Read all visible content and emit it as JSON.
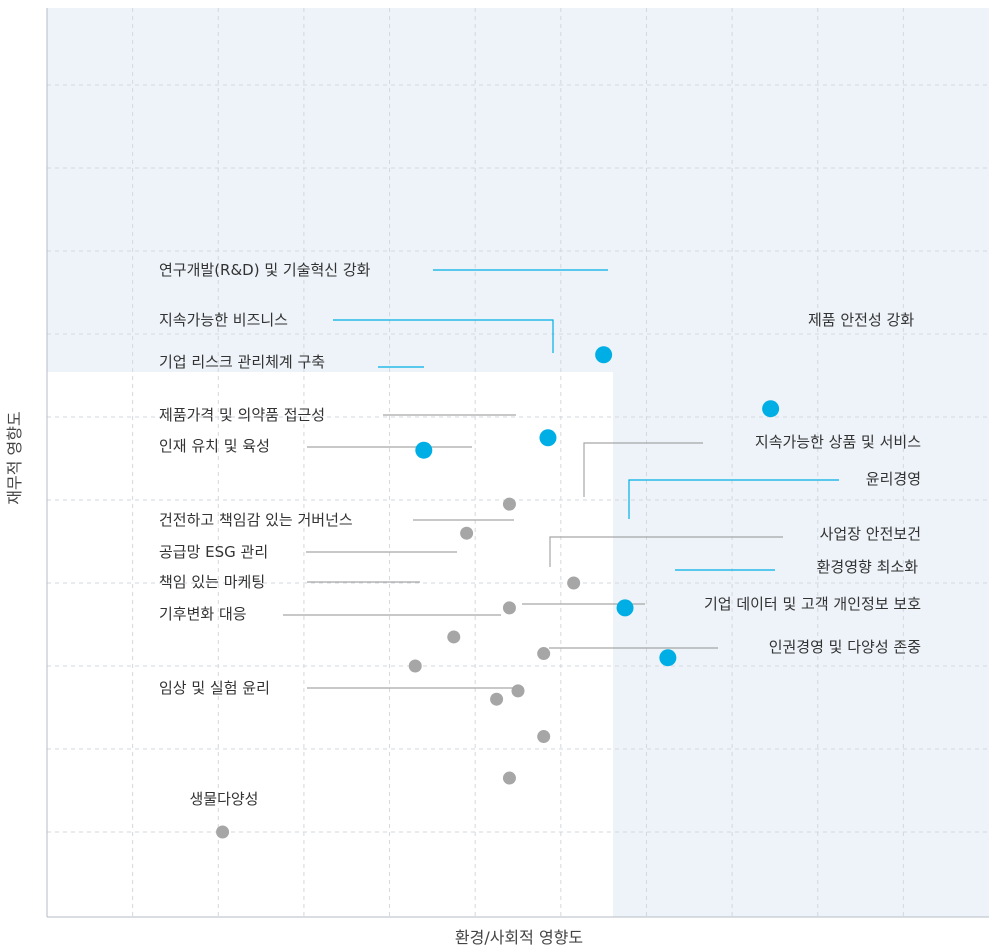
{
  "chart_data": {
    "type": "scatter",
    "xlabel": "환경/사회적 영향도",
    "ylabel": "재무적 영향도",
    "xlim": [
      0,
      11
    ],
    "ylim": [
      0,
      9
    ],
    "grid": true,
    "colors": {
      "highlight": "#00aee6",
      "normal": "#a6a6a6",
      "background_band": "#edf3f9",
      "grid": "#d3d8df"
    },
    "points": [
      {
        "label": "연구개발(R&D) 및 기술혁신 강화",
        "x": 6.5,
        "y": 5.75,
        "highlight": true
      },
      {
        "label": "지속가능한 비즈니스",
        "x": 5.85,
        "y": 4.75,
        "highlight": true
      },
      {
        "label": "기업 리스크 관리체계 구축",
        "x": 4.4,
        "y": 4.6,
        "highlight": true
      },
      {
        "label": "제품 안전성 강화",
        "x": 8.45,
        "y": 5.1,
        "highlight": true
      },
      {
        "label": "윤리경영",
        "x": 6.75,
        "y": 2.7,
        "highlight": true
      },
      {
        "label": "환경영향 최소화",
        "x": 7.25,
        "y": 2.1,
        "highlight": true
      },
      {
        "label": "제품가격 및 의약품 접근성",
        "x": 5.4,
        "y": 3.95,
        "highlight": false
      },
      {
        "label": "인재 유치 및 육성",
        "x": 4.9,
        "y": 3.6,
        "highlight": false
      },
      {
        "label": "지속가능한 상품 및 서비스",
        "x": 6.15,
        "y": 3.0,
        "highlight": false
      },
      {
        "label": "건전하고 책임감 있는 거버넌스",
        "x": 5.4,
        "y": 2.7,
        "highlight": false
      },
      {
        "label": "공급망 ESG 관리",
        "x": 4.75,
        "y": 2.35,
        "highlight": false
      },
      {
        "label": "사업장 안전보건",
        "x": 5.8,
        "y": 2.15,
        "highlight": false
      },
      {
        "label": "책임 있는 마케팅",
        "x": 4.3,
        "y": 2.0,
        "highlight": false
      },
      {
        "label": "기업 데이터 및 고객 개인정보 보호",
        "x": 5.5,
        "y": 1.7,
        "highlight": false
      },
      {
        "label": "기후변화 대응",
        "x": 5.25,
        "y": 1.6,
        "highlight": false
      },
      {
        "label": "인권경영 및 다양성 존중",
        "x": 5.8,
        "y": 1.15,
        "highlight": false
      },
      {
        "label": "임상 및 실험 윤리",
        "x": 5.4,
        "y": 0.65,
        "highlight": false
      },
      {
        "label": "생물다양성",
        "x": 2.05,
        "y": 0.0,
        "highlight": false
      }
    ]
  }
}
